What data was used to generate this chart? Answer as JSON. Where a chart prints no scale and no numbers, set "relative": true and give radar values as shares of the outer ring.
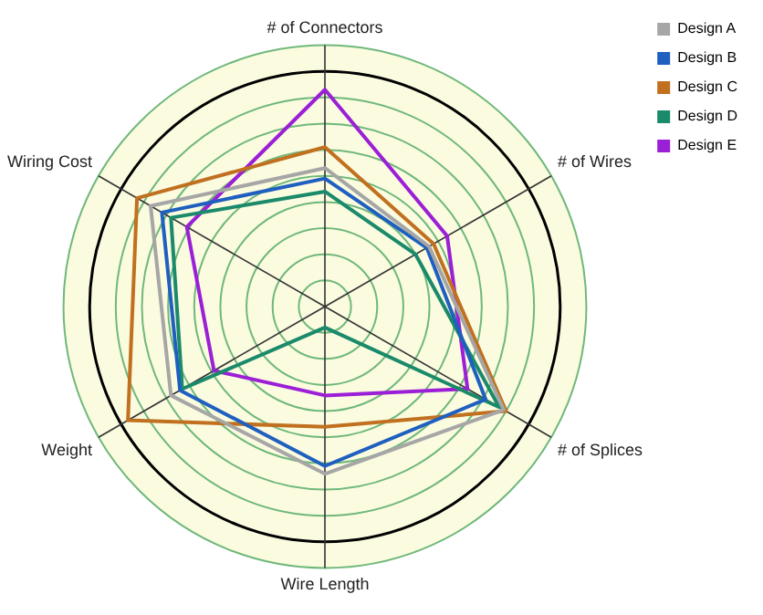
{
  "chart_data": {
    "type": "radar",
    "relative": true,
    "grid": true,
    "legend": "top right",
    "marker": "none",
    "categories": [
      "# of Connectors",
      "# of Wires",
      "# of Splices",
      "Wire Length",
      "Weight",
      "Wiring Cost"
    ],
    "series": [
      {
        "name": "Design A",
        "color": "#a6a6a6",
        "values": [
          0.53,
          0.46,
          0.79,
          0.64,
          0.68,
          0.77
        ]
      },
      {
        "name": "Design B",
        "color": "#1f5fbf",
        "values": [
          0.49,
          0.45,
          0.71,
          0.61,
          0.64,
          0.72
        ]
      },
      {
        "name": "Design C",
        "color": "#c0701e",
        "values": [
          0.61,
          0.48,
          0.8,
          0.46,
          0.87,
          0.83
        ]
      },
      {
        "name": "Design D",
        "color": "#1a8a6a",
        "values": [
          0.44,
          0.4,
          0.77,
          0.08,
          0.63,
          0.68
        ]
      },
      {
        "name": "Design E",
        "color": "#9b1fd6",
        "values": [
          0.83,
          0.54,
          0.63,
          0.34,
          0.49,
          0.61
        ]
      }
    ]
  }
}
